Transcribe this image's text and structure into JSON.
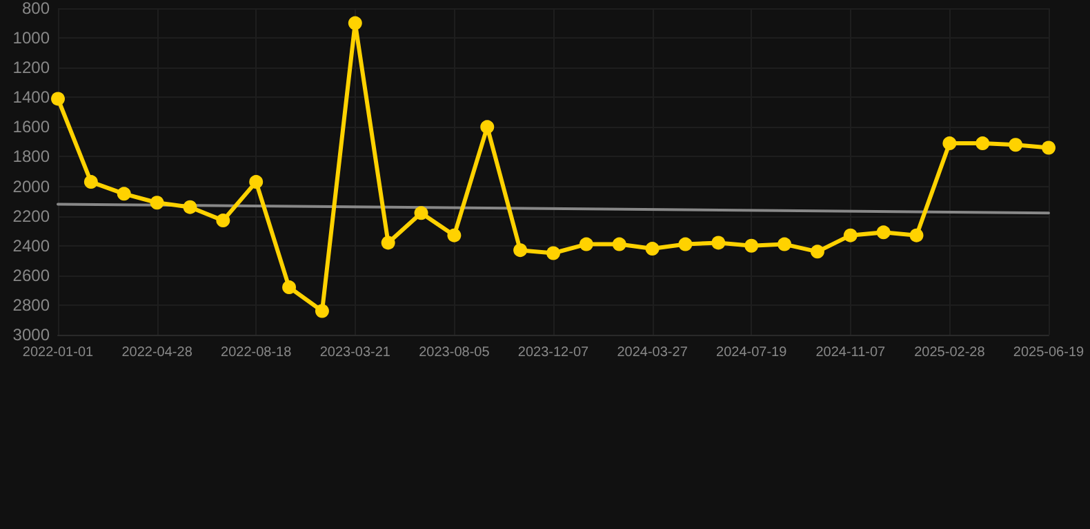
{
  "chart_data": {
    "type": "line",
    "categories": [
      "2022-01-01",
      null,
      null,
      "2022-04-28",
      null,
      null,
      "2022-08-18",
      null,
      null,
      "2023-03-21",
      null,
      null,
      "2023-08-05",
      null,
      null,
      "2023-12-07",
      null,
      null,
      "2024-03-27",
      null,
      null,
      "2024-07-19",
      null,
      null,
      "2024-11-07",
      null,
      null,
      "2025-02-28",
      null,
      null,
      "2025-06-19"
    ],
    "series": [
      {
        "color": "#ffd200",
        "marker": "circle",
        "values": [
          1410,
          1970,
          2050,
          2110,
          2140,
          2230,
          1970,
          2680,
          2840,
          900,
          2380,
          2180,
          2330,
          1600,
          2430,
          2450,
          2390,
          2390,
          2420,
          2390,
          2380,
          2400,
          2390,
          2440,
          2330,
          2310,
          2330,
          1710,
          1710,
          1720,
          1740
        ]
      },
      {
        "type": "line",
        "color": "#888888",
        "marker": "none",
        "values": [
          2120,
          null,
          null,
          null,
          null,
          null,
          null,
          null,
          null,
          null,
          null,
          null,
          null,
          null,
          null,
          null,
          null,
          null,
          null,
          null,
          null,
          null,
          null,
          null,
          null,
          null,
          null,
          null,
          null,
          null,
          2180
        ]
      }
    ],
    "ylim": [
      3000,
      800
    ],
    "yticks": [
      800,
      1000,
      1200,
      1400,
      1600,
      1800,
      2000,
      2200,
      2400,
      2600,
      2800,
      3000
    ],
    "grid": true,
    "line_style": "solid"
  }
}
